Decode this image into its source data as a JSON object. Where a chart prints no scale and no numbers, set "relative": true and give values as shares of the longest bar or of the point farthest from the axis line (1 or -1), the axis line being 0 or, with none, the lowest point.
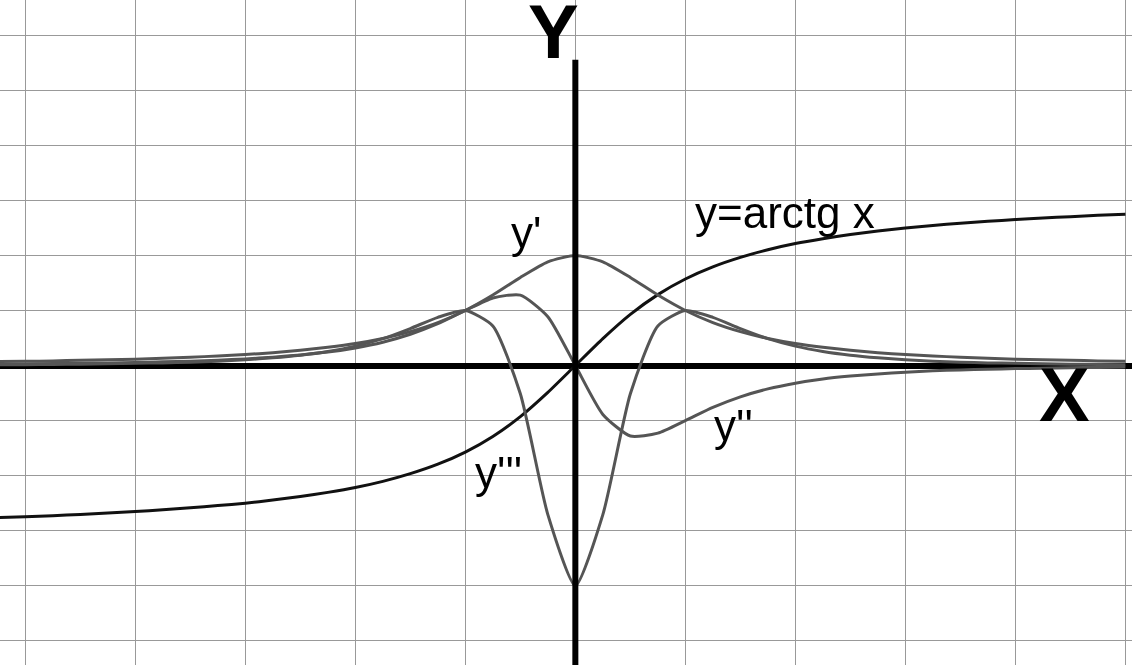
{
  "chart_data": {
    "type": "line",
    "relative": true,
    "xlabel": "X",
    "ylabel": "Y",
    "grid": true,
    "legend": false,
    "marker": "none",
    "line_style": "solid",
    "categories": [
      null,
      null,
      null,
      null,
      null,
      null,
      null,
      null,
      null,
      null,
      null,
      null,
      null,
      null,
      null,
      null,
      null,
      null,
      null,
      null,
      null,
      null,
      null,
      null,
      null,
      null,
      null,
      null,
      null,
      null,
      null,
      null,
      null,
      null,
      null,
      null,
      null,
      null,
      null,
      null,
      null,
      null
    ],
    "series": [
      {
        "name": "y=arctg x",
        "color": "#111111",
        "values": [
          -0.691,
          -0.687,
          -0.682,
          -0.676,
          -0.67,
          -0.663,
          -0.655,
          -0.646,
          -0.636,
          -0.625,
          -0.611,
          -0.595,
          -0.576,
          -0.554,
          -0.526,
          -0.491,
          -0.448,
          -0.393,
          -0.322,
          -0.232,
          -0.122,
          0,
          0.122,
          0.232,
          0.322,
          0.393,
          0.448,
          0.491,
          0.526,
          0.554,
          0.576,
          0.595,
          0.611,
          0.625,
          0.636,
          0.646,
          0.655,
          0.663,
          0.67,
          0.676,
          0.682,
          0.687
        ]
      },
      {
        "name": "y'",
        "color": "#555555",
        "values": [
          0.018,
          0.019,
          0.021,
          0.024,
          0.026,
          0.029,
          0.033,
          0.038,
          0.043,
          0.05,
          0.058,
          0.069,
          0.083,
          0.1,
          0.123,
          0.154,
          0.195,
          0.25,
          0.32,
          0.4,
          0.471,
          0.5,
          0.471,
          0.4,
          0.32,
          0.25,
          0.195,
          0.154,
          0.123,
          0.1,
          0.083,
          0.069,
          0.058,
          0.05,
          0.043,
          0.038,
          0.033,
          0.029,
          0.026,
          0.024,
          0.021,
          0.019
        ]
      },
      {
        "name": "y''",
        "color": "#555555",
        "values": [
          0.006,
          0.007,
          0.009,
          0.01,
          0.012,
          0.014,
          0.017,
          0.02,
          0.024,
          0.03,
          0.038,
          0.048,
          0.061,
          0.08,
          0.106,
          0.142,
          0.19,
          0.25,
          0.307,
          0.32,
          0.222,
          0,
          -0.222,
          -0.32,
          -0.307,
          -0.25,
          -0.19,
          -0.142,
          -0.106,
          -0.08,
          -0.061,
          -0.048,
          -0.038,
          -0.03,
          -0.024,
          -0.02,
          -0.017,
          -0.014,
          -0.012,
          -0.01,
          -0.009,
          -0.007
        ]
      },
      {
        "name": "y'''",
        "color": "#555555",
        "values": [
          0.004,
          0.004,
          0.005,
          0.006,
          0.008,
          0.01,
          0.012,
          0.015,
          0.02,
          0.026,
          0.035,
          0.047,
          0.064,
          0.088,
          0.122,
          0.168,
          0.219,
          0.25,
          0.18,
          -0.128,
          -0.677,
          -1,
          -0.677,
          -0.128,
          0.18,
          0.25,
          0.219,
          0.168,
          0.122,
          0.088,
          0.064,
          0.047,
          0.035,
          0.026,
          0.02,
          0.015,
          0.012,
          0.01,
          0.008,
          0.006,
          0.005,
          0.004
        ]
      }
    ]
  }
}
